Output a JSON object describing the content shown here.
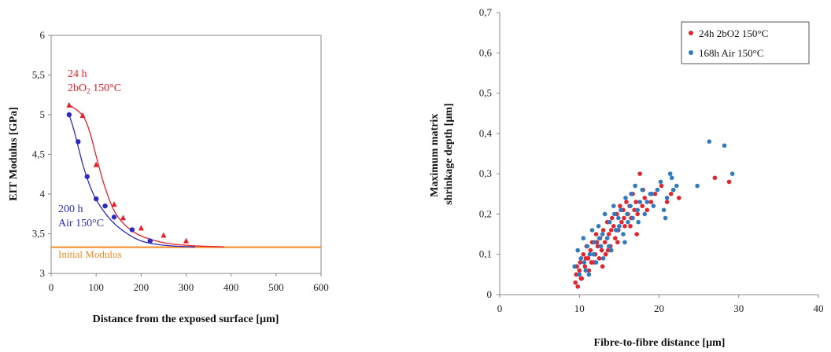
{
  "chart_data": [
    {
      "type": "scatter",
      "xlabel": "Distance from the exposed surface [µm]",
      "ylabel": "EIT Modulus [GPa]",
      "xlim": [
        0,
        600
      ],
      "ylim": [
        3,
        6
      ],
      "xticks": [
        "0",
        "100",
        "200",
        "300",
        "400",
        "500",
        "600"
      ],
      "yticks": [
        "3",
        "3,5",
        "4",
        "4,5",
        "5",
        "5,5",
        "6"
      ],
      "grid": false,
      "series": [
        {
          "label_lines": [
            "24 h",
            "2bO",
            "2",
            " 150°C"
          ],
          "color": "#e8202a",
          "marker": "triangle",
          "x": [
            40,
            70,
            100,
            140,
            160,
            200,
            250,
            300
          ],
          "y": [
            5.12,
            4.99,
            4.37,
            3.87,
            3.7,
            3.57,
            3.48,
            3.41
          ],
          "curve_x": [
            40,
            55,
            70,
            80,
            90,
            100,
            110,
            120,
            135,
            150,
            170,
            190,
            210,
            240,
            270,
            300,
            330,
            360,
            385
          ],
          "curve_y": [
            5.12,
            5.07,
            4.99,
            4.88,
            4.7,
            4.48,
            4.27,
            4.08,
            3.85,
            3.7,
            3.58,
            3.5,
            3.45,
            3.4,
            3.37,
            3.355,
            3.345,
            3.34,
            3.335
          ]
        },
        {
          "label_lines": [
            "200 h",
            "Air 150°C"
          ],
          "color": "#2b2bbf",
          "marker": "circle",
          "x": [
            40,
            60,
            80,
            100,
            120,
            140,
            180,
            220
          ],
          "y": [
            5.0,
            4.66,
            4.22,
            3.94,
            3.85,
            3.71,
            3.55,
            3.41
          ],
          "curve_x": [
            40,
            50,
            60,
            70,
            80,
            90,
            100,
            115,
            130,
            150,
            175,
            200,
            230,
            260,
            290,
            320
          ],
          "curve_y": [
            5.0,
            4.82,
            4.6,
            4.38,
            4.2,
            4.05,
            3.93,
            3.8,
            3.69,
            3.58,
            3.48,
            3.41,
            3.37,
            3.35,
            3.34,
            3.335
          ]
        }
      ],
      "reference_line": {
        "label": "Initial Modulus",
        "y": 3.33,
        "color": "#f08a24"
      }
    },
    {
      "type": "scatter",
      "xlabel": "Fibre-to-fibre distance [µm]",
      "ylabel_lines": [
        "Maximum matrix",
        "shrinkage depth [µm]"
      ],
      "xlim": [
        0,
        40
      ],
      "ylim": [
        0,
        0.7
      ],
      "xticks": [
        "0",
        "10",
        "20",
        "30",
        "40"
      ],
      "yticks": [
        "0",
        "0,1",
        "0,2",
        "0,3",
        "0,4",
        "0,5",
        "0,6",
        "0,7"
      ],
      "legend_position": "top-right",
      "grid": false,
      "series": [
        {
          "name": "24h 2bO2 150°C",
          "color": "#e0262f",
          "x": [
            9.5,
            9.6,
            9.8,
            10.0,
            10.1,
            10.3,
            10.5,
            10.7,
            10.9,
            11.1,
            11.2,
            11.4,
            11.6,
            11.8,
            12.0,
            12.1,
            12.3,
            12.5,
            12.6,
            12.8,
            13.0,
            13.2,
            13.3,
            13.5,
            13.7,
            13.9,
            14.1,
            14.3,
            14.5,
            14.7,
            14.9,
            15.1,
            15.3,
            15.5,
            15.7,
            15.9,
            16.1,
            16.3,
            16.5,
            16.7,
            16.9,
            17.1,
            17.3,
            17.6,
            17.9,
            18.2,
            18.5,
            19.0,
            19.5,
            20.3,
            21.0,
            21.8,
            22.5,
            27.0,
            28.8,
            9.7,
            10.2,
            10.8,
            11.5,
            12.2,
            12.9,
            13.6,
            14.0,
            14.8,
            15.6,
            16.4,
            17.2,
            18.0,
            21.5
          ],
          "y": [
            0.03,
            0.05,
            0.02,
            0.06,
            0.08,
            0.04,
            0.1,
            0.07,
            0.12,
            0.09,
            0.06,
            0.11,
            0.13,
            0.08,
            0.1,
            0.15,
            0.12,
            0.09,
            0.14,
            0.11,
            0.16,
            0.13,
            0.1,
            0.18,
            0.15,
            0.12,
            0.19,
            0.17,
            0.14,
            0.2,
            0.16,
            0.22,
            0.18,
            0.21,
            0.17,
            0.23,
            0.2,
            0.22,
            0.19,
            0.25,
            0.21,
            0.23,
            0.2,
            0.3,
            0.22,
            0.24,
            0.21,
            0.23,
            0.25,
            0.27,
            0.23,
            0.26,
            0.24,
            0.29,
            0.28,
            0.07,
            0.04,
            0.09,
            0.08,
            0.13,
            0.07,
            0.11,
            0.16,
            0.13,
            0.19,
            0.17,
            0.15,
            0.26,
            0.25
          ]
        },
        {
          "name": "168h Air 150°C",
          "color": "#2f7bbd",
          "x": [
            9.4,
            9.8,
            10.2,
            10.5,
            10.8,
            11.0,
            11.3,
            11.6,
            11.9,
            12.1,
            12.4,
            12.7,
            12.9,
            13.2,
            13.5,
            13.8,
            14.0,
            14.3,
            14.6,
            14.9,
            15.2,
            15.5,
            15.8,
            16.1,
            16.4,
            16.7,
            17.0,
            17.3,
            17.6,
            17.9,
            18.2,
            18.5,
            18.9,
            19.3,
            19.8,
            20.2,
            20.6,
            21.0,
            21.4,
            21.8,
            22.2,
            24.8,
            26.3,
            28.2,
            29.2,
            10.0,
            10.6,
            11.2,
            11.8,
            12.5,
            13.0,
            13.7,
            14.4,
            15.0,
            15.7,
            16.5,
            17.4,
            19.1,
            20.8,
            21.6,
            16.0,
            14.8
          ],
          "y": [
            0.07,
            0.11,
            0.09,
            0.14,
            0.06,
            0.12,
            0.1,
            0.16,
            0.13,
            0.08,
            0.17,
            0.12,
            0.15,
            0.2,
            0.14,
            0.18,
            0.11,
            0.22,
            0.16,
            0.19,
            0.21,
            0.15,
            0.24,
            0.18,
            0.22,
            0.19,
            0.27,
            0.21,
            0.23,
            0.26,
            0.2,
            0.23,
            0.25,
            0.22,
            0.26,
            0.28,
            0.21,
            0.24,
            0.3,
            0.26,
            0.27,
            0.27,
            0.38,
            0.37,
            0.3,
            0.05,
            0.08,
            0.05,
            0.1,
            0.14,
            0.09,
            0.12,
            0.2,
            0.17,
            0.13,
            0.25,
            0.18,
            0.25,
            0.19,
            0.29,
            0.2,
            0.16
          ]
        }
      ]
    }
  ]
}
